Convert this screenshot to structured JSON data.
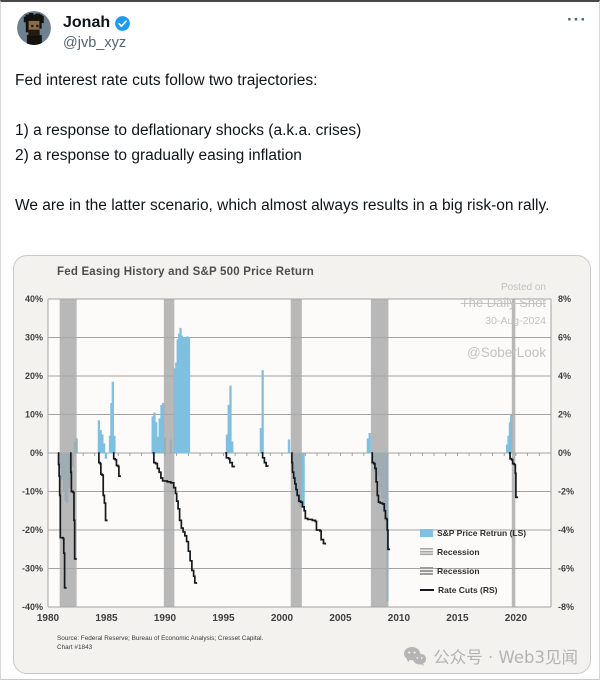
{
  "tweet": {
    "display_name": "Jonah",
    "handle": "@jvb_xyz",
    "more_icon": "···",
    "paragraphs": [
      "Fed interest rate cuts follow two trajectories:",
      "1) a response to deflationary shocks (a.k.a. crises)",
      "2) a response to gradually easing inflation",
      "We are in the latter scenario, which almost always results in a big risk-on rally."
    ]
  },
  "icons": {
    "avatar": "pixel-punk-avatar",
    "verified_badge": "verified-badge",
    "more_options": "more-horizontal",
    "wechat": "wechat-logo"
  },
  "footer_watermark": {
    "icon": "wechat-logo",
    "text": "公众号 · Web3见闻"
  },
  "chart_data": {
    "type": "bar+line",
    "title": "Fed Easing History and S&P 500 Price Return",
    "posted_on": [
      "Posted on",
      "The Daily Shot",
      "30-Aug-2024",
      "@SoberLook"
    ],
    "source_lines": [
      "Source: Federal Reserve; Bureau of Economic Analysis; Cresset Capital.",
      "Chart #1843"
    ],
    "legend": [
      {
        "label": "S&P Price Retrun (LS)",
        "swatch": "blue-bar"
      },
      {
        "label": "Recession",
        "swatch": "gray-stripes"
      },
      {
        "label": "Recession",
        "swatch": "gray-stripes"
      },
      {
        "label": "Rate Cuts (RS)",
        "swatch": "black-line"
      }
    ],
    "x_axis": {
      "min": 1980,
      "max": 2023,
      "ticks": [
        1980,
        1985,
        1990,
        1995,
        2000,
        2005,
        2010,
        2015,
        2020
      ]
    },
    "left_axis": {
      "min": -40,
      "max": 40,
      "values": [
        40,
        30,
        20,
        10,
        0,
        -10,
        -20,
        -30,
        -40
      ],
      "ticks": [
        "40%",
        "30%",
        "20%",
        "10%",
        "0%",
        "-10%",
        "-20%",
        "-30%",
        "-40%"
      ]
    },
    "right_axis": {
      "min": -8,
      "max": 8,
      "values": [
        8,
        6,
        4,
        2,
        0,
        -2,
        -4,
        -6,
        -8
      ],
      "ticks": [
        "8%",
        "6%",
        "4%",
        "2%",
        "0%",
        "-2%",
        "-4%",
        "-6%",
        "-8%"
      ]
    },
    "colors": {
      "sp500": "#7fc0e0",
      "recession": "#a8a8a8",
      "rate_cuts": "#16191d",
      "grid": "#a3a3a3",
      "plot_bg": "#fcfbf9",
      "watermark": "#c2c2c2"
    },
    "recessions": [
      [
        1981.0,
        1982.45
      ],
      [
        1989.9,
        1990.8
      ],
      [
        2000.75,
        2001.7
      ],
      [
        2007.6,
        2009.1
      ],
      [
        2019.65,
        2019.95
      ]
    ],
    "sp500_bars": {
      "series": "S&P Price Retrun (LS)",
      "points": [
        [
          1981.05,
          -4
        ],
        [
          1981.2,
          -7
        ],
        [
          1981.35,
          -10
        ],
        [
          1981.5,
          -12.5
        ],
        [
          1981.65,
          -13
        ],
        [
          1981.8,
          -9
        ],
        [
          1981.95,
          -6
        ],
        [
          1982.1,
          -3.5
        ],
        [
          1982.3,
          3
        ],
        [
          1982.45,
          3.8
        ],
        [
          1984.35,
          8.5
        ],
        [
          1984.5,
          6
        ],
        [
          1984.65,
          4.8
        ],
        [
          1984.8,
          2.5
        ],
        [
          1984.95,
          -1.5
        ],
        [
          1985.3,
          4.5
        ],
        [
          1985.42,
          13
        ],
        [
          1985.54,
          18.5
        ],
        [
          1985.68,
          4.5
        ],
        [
          1988.95,
          9.5
        ],
        [
          1989.1,
          10.5
        ],
        [
          1989.25,
          8
        ],
        [
          1989.4,
          4.2
        ],
        [
          1989.55,
          9
        ],
        [
          1989.7,
          12.5
        ],
        [
          1989.85,
          13
        ],
        [
          1990.0,
          4
        ],
        [
          1990.5,
          3.5
        ],
        [
          1990.85,
          22
        ],
        [
          1990.97,
          23.5
        ],
        [
          1991.09,
          29.5
        ],
        [
          1991.21,
          31
        ],
        [
          1991.33,
          32.5
        ],
        [
          1991.45,
          30.5
        ],
        [
          1991.57,
          30
        ],
        [
          1991.69,
          29.8
        ],
        [
          1991.81,
          30
        ],
        [
          1991.93,
          30.3
        ],
        [
          1992.05,
          30
        ],
        [
          1995.3,
          4.8
        ],
        [
          1995.45,
          12.5
        ],
        [
          1995.6,
          17.5
        ],
        [
          1995.75,
          3
        ],
        [
          1998.2,
          6.5
        ],
        [
          1998.35,
          21.5
        ],
        [
          2000.6,
          3.5
        ],
        [
          2000.95,
          -4
        ],
        [
          2001.1,
          -7.5
        ],
        [
          2001.25,
          -10.5
        ],
        [
          2001.4,
          -13
        ],
        [
          2001.55,
          -14
        ],
        [
          2001.7,
          -13.5
        ],
        [
          2001.85,
          -13.8
        ],
        [
          2007.35,
          3.8
        ],
        [
          2007.5,
          5.2
        ],
        [
          2007.8,
          -2.5
        ],
        [
          2007.95,
          -5
        ],
        [
          2008.1,
          -7.5
        ],
        [
          2008.25,
          -6
        ],
        [
          2008.4,
          -10
        ],
        [
          2008.55,
          -12
        ],
        [
          2008.7,
          -15
        ],
        [
          2008.82,
          -17.5
        ],
        [
          2008.94,
          -20
        ],
        [
          2009.02,
          -38.5
        ],
        [
          2019.25,
          2.2
        ],
        [
          2019.37,
          4.5
        ],
        [
          2019.49,
          8
        ],
        [
          2019.6,
          10
        ]
      ]
    },
    "rate_cut_segments": [
      [
        [
          1980.85,
          0
        ],
        [
          1980.9,
          -0.6
        ],
        [
          1980.95,
          -1.2
        ],
        [
          1981.0,
          -2.2
        ],
        [
          1981.05,
          -4.4
        ],
        [
          1981.3,
          -4.45
        ],
        [
          1981.35,
          -5.2
        ],
        [
          1981.42,
          -7.0
        ],
        [
          1981.52,
          -7.05
        ]
      ],
      [
        [
          1981.9,
          0
        ],
        [
          1981.95,
          -1.0
        ],
        [
          1982.0,
          -2.0
        ],
        [
          1982.15,
          -2.05
        ],
        [
          1982.22,
          -3.5
        ],
        [
          1982.28,
          -5.5
        ],
        [
          1982.38,
          -5.55
        ]
      ],
      [
        [
          1984.3,
          0
        ],
        [
          1984.35,
          -0.5
        ],
        [
          1984.45,
          -0.55
        ],
        [
          1984.52,
          -1.1
        ],
        [
          1984.62,
          -1.15
        ],
        [
          1984.72,
          -2.2
        ],
        [
          1984.82,
          -2.6
        ],
        [
          1984.92,
          -3.5
        ],
        [
          1985.02,
          -3.55
        ]
      ],
      [
        [
          1985.55,
          0
        ],
        [
          1985.62,
          -0.3
        ],
        [
          1985.75,
          -0.35
        ],
        [
          1985.85,
          -0.65
        ],
        [
          1986.0,
          -0.7
        ],
        [
          1986.06,
          -1.2
        ],
        [
          1986.16,
          -1.25
        ]
      ],
      [
        [
          1988.95,
          0
        ],
        [
          1989.05,
          -0.5
        ],
        [
          1989.2,
          -0.55
        ],
        [
          1989.35,
          -0.8
        ],
        [
          1989.5,
          -1.0
        ],
        [
          1989.65,
          -1.3
        ],
        [
          1989.8,
          -1.45
        ],
        [
          1990.2,
          -1.5
        ],
        [
          1990.5,
          -1.55
        ],
        [
          1990.75,
          -1.8
        ],
        [
          1990.9,
          -2.1
        ],
        [
          1991.0,
          -2.5
        ],
        [
          1991.12,
          -2.9
        ],
        [
          1991.25,
          -3.5
        ],
        [
          1991.4,
          -3.9
        ],
        [
          1991.55,
          -4.1
        ],
        [
          1991.7,
          -4.3
        ],
        [
          1991.85,
          -4.6
        ],
        [
          1992.0,
          -5.1
        ],
        [
          1992.15,
          -5.6
        ],
        [
          1992.3,
          -6.1
        ],
        [
          1992.45,
          -6.4
        ],
        [
          1992.55,
          -6.75
        ],
        [
          1992.68,
          -6.8
        ]
      ],
      [
        [
          1995.15,
          0
        ],
        [
          1995.25,
          -0.25
        ],
        [
          1995.45,
          -0.3
        ],
        [
          1995.55,
          -0.5
        ],
        [
          1995.75,
          -0.7
        ],
        [
          1995.9,
          -0.75
        ]
      ],
      [
        [
          1998.25,
          0
        ],
        [
          1998.35,
          -0.25
        ],
        [
          1998.5,
          -0.5
        ],
        [
          1998.65,
          -0.68
        ],
        [
          1998.8,
          -0.7
        ]
      ],
      [
        [
          2000.8,
          0
        ],
        [
          2000.85,
          -0.5
        ],
        [
          2000.9,
          -1.0
        ],
        [
          2001.0,
          -1.3
        ],
        [
          2001.1,
          -1.6
        ],
        [
          2001.2,
          -1.9
        ],
        [
          2001.3,
          -2.2
        ],
        [
          2001.45,
          -2.5
        ],
        [
          2001.6,
          -2.55
        ],
        [
          2001.75,
          -2.8
        ],
        [
          2001.9,
          -3.0
        ],
        [
          2002.0,
          -3.4
        ],
        [
          2002.2,
          -3.45
        ],
        [
          2002.6,
          -3.5
        ],
        [
          2002.85,
          -3.55
        ],
        [
          2002.95,
          -4.0
        ],
        [
          2003.25,
          -4.05
        ],
        [
          2003.35,
          -4.5
        ],
        [
          2003.55,
          -4.7
        ],
        [
          2003.7,
          -4.75
        ]
      ],
      [
        [
          2007.65,
          0
        ],
        [
          2007.72,
          -0.5
        ],
        [
          2007.85,
          -0.55
        ],
        [
          2007.95,
          -0.8
        ],
        [
          2008.05,
          -1.5
        ],
        [
          2008.15,
          -2.2
        ],
        [
          2008.25,
          -2.55
        ],
        [
          2008.4,
          -2.6
        ],
        [
          2008.6,
          -2.65
        ],
        [
          2008.75,
          -3.0
        ],
        [
          2008.85,
          -3.4
        ],
        [
          2008.95,
          -3.45
        ],
        [
          2009.0,
          -4.0
        ],
        [
          2009.06,
          -5.0
        ],
        [
          2009.16,
          -5.05
        ]
      ],
      [
        [
          2019.4,
          0
        ],
        [
          2019.5,
          -0.3
        ],
        [
          2019.62,
          -0.35
        ],
        [
          2019.72,
          -0.55
        ],
        [
          2019.85,
          -0.6
        ],
        [
          2019.95,
          -1.05
        ],
        [
          2020.0,
          -2.3
        ],
        [
          2020.1,
          -2.35
        ]
      ]
    ]
  }
}
